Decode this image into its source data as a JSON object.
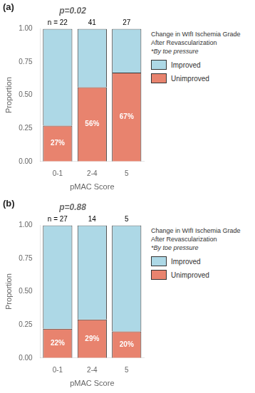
{
  "chart_data": [
    {
      "type": "bar",
      "stacked": true,
      "title": "p=0.02",
      "panel_label": "(a)",
      "xlabel": "pMAC Score",
      "ylabel": "Proportion",
      "categories": [
        "0-1",
        "2-4",
        "5"
      ],
      "series": [
        {
          "name": "Unimproved",
          "color": "#e8836e",
          "values": [
            0.27,
            0.56,
            0.67
          ],
          "data_labels": true,
          "value_labels": [
            "27%",
            "56%",
            "67%"
          ]
        },
        {
          "name": "Improved",
          "color": "#add8e6",
          "values": [
            0.73,
            0.44,
            0.33
          ]
        }
      ],
      "annotations": [
        {
          "category": "0-1",
          "text": "n = 22"
        },
        {
          "category": "2-4",
          "text": "41"
        },
        {
          "category": "5",
          "text": "27"
        }
      ],
      "ylim": [
        0,
        1.0
      ],
      "yticks": [
        {
          "value": 0,
          "label": "0.00"
        },
        {
          "value": 0.25,
          "label": "0.25"
        },
        {
          "value": 0.5,
          "label": "0.50"
        },
        {
          "value": 0.75,
          "label": "0.75"
        },
        {
          "value": 1.0,
          "label": "1.00"
        }
      ],
      "grid": false,
      "legend": "right",
      "legend_title": [
        "Change in WIfI Ischemia Grade",
        "After Revascularization",
        "*By toe pressure"
      ]
    },
    {
      "type": "bar",
      "stacked": true,
      "title": "p=0.88",
      "panel_label": "(b)",
      "xlabel": "pMAC Score",
      "ylabel": "Proportion",
      "categories": [
        "0-1",
        "2-4",
        "5"
      ],
      "series": [
        {
          "name": "Unimproved",
          "color": "#e8836e",
          "values": [
            0.22,
            0.29,
            0.2
          ],
          "data_labels": true,
          "value_labels": [
            "22%",
            "29%",
            "20%"
          ]
        },
        {
          "name": "Improved",
          "color": "#add8e6",
          "values": [
            0.78,
            0.71,
            0.8
          ]
        }
      ],
      "annotations": [
        {
          "category": "0-1",
          "text": "n = 27"
        },
        {
          "category": "2-4",
          "text": "14"
        },
        {
          "category": "5",
          "text": "5"
        }
      ],
      "ylim": [
        0,
        1.0
      ],
      "yticks": [
        {
          "value": 0,
          "label": "0.00"
        },
        {
          "value": 0.25,
          "label": "0.25"
        },
        {
          "value": 0.5,
          "label": "0.50"
        },
        {
          "value": 0.75,
          "label": "0.75"
        },
        {
          "value": 1.0,
          "label": "1.00"
        }
      ],
      "grid": false,
      "legend": "right",
      "legend_title": [
        "Change in WIfI Ischemia Grade",
        "After Revascularization",
        "*By toe pressure"
      ]
    }
  ]
}
